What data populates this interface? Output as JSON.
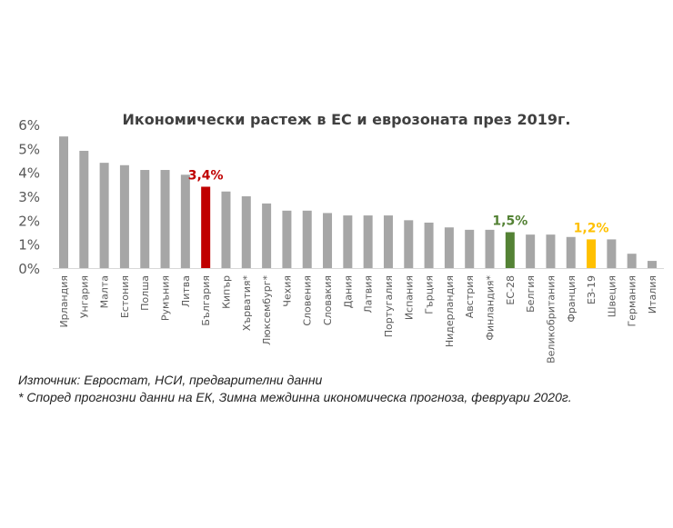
{
  "chart_data": {
    "type": "bar",
    "title": "Икономически растеж в ЕС и еврозоната през 2019г.",
    "xlabel": "",
    "ylabel": "",
    "ylim": [
      0,
      6
    ],
    "yticks": [
      "0%",
      "1%",
      "2%",
      "3%",
      "4%",
      "5%",
      "6%"
    ],
    "grid": false,
    "categories": [
      "Ирландия",
      "Унгария",
      "Малта",
      "Естония",
      "Полша",
      "Румъния",
      "Литва",
      "България",
      "Кипър",
      "Хърватия*",
      "Люксембург*",
      "Чехия",
      "Словения",
      "Словакия",
      "Дания",
      "Латвия",
      "Португалия",
      "Испания",
      "Гърция",
      "Нидерландия",
      "Австрия",
      "Финландия*",
      "ЕС-28",
      "Белгия",
      "Великобритания",
      "Франция",
      "ЕЗ-19",
      "Швеция",
      "Германия",
      "Италия"
    ],
    "values": [
      5.5,
      4.9,
      4.4,
      4.3,
      4.1,
      4.1,
      3.9,
      3.4,
      3.2,
      3.0,
      2.7,
      2.4,
      2.4,
      2.3,
      2.2,
      2.2,
      2.2,
      2.0,
      1.9,
      1.7,
      1.6,
      1.6,
      1.5,
      1.4,
      1.4,
      1.3,
      1.2,
      1.2,
      0.6,
      0.3
    ],
    "default_color": "#A6A6A6",
    "highlights": [
      {
        "category": "България",
        "color": "#C00000",
        "label": "3,4%"
      },
      {
        "category": "ЕС-28",
        "color": "#548235",
        "label": "1,5%"
      },
      {
        "category": "ЕЗ-19",
        "color": "#FFC000",
        "label": "1,2%"
      }
    ]
  },
  "notes": {
    "source": "Източник: Евростат, НСИ, предварителни данни",
    "footnote": "* Според прогнозни данни на ЕК, Зимна междинна икономическа прогноза, февруари 2020г."
  }
}
